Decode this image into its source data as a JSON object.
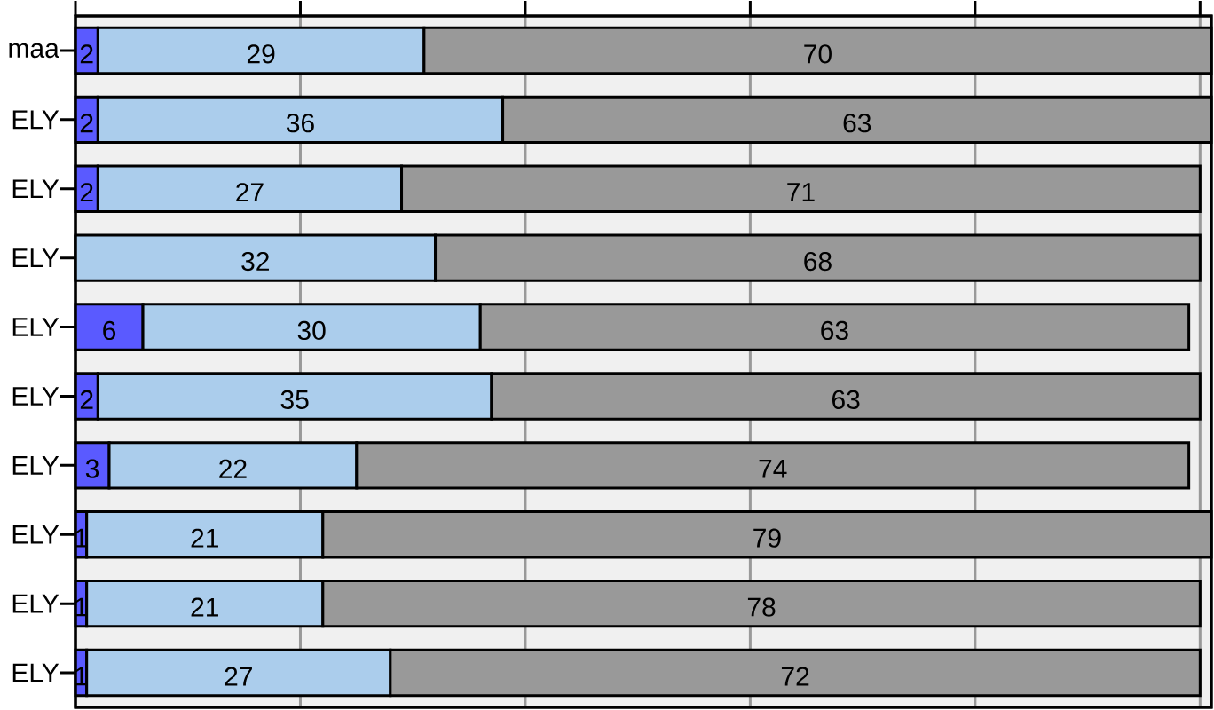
{
  "chart_data": {
    "type": "bar",
    "orientation": "horizontal",
    "stacked": true,
    "categories": [
      "maa",
      "ELY",
      "ELY",
      "ELY",
      "ELY",
      "ELY",
      "ELY",
      "ELY",
      "ELY",
      "ELY"
    ],
    "series": [
      {
        "color": "#5a5aff",
        "values": [
          2,
          2,
          2,
          0,
          6,
          2,
          3,
          1,
          1,
          1
        ],
        "value_labels": [
          "2",
          "2",
          "2",
          null,
          "6",
          "2",
          "3",
          "1",
          "1",
          "1"
        ]
      },
      {
        "color": "#abcdec",
        "values": [
          29,
          36,
          27,
          32,
          30,
          35,
          22,
          21,
          21,
          27
        ],
        "value_labels": [
          "29",
          "36",
          "27",
          "32",
          "30",
          "35",
          "22",
          "21",
          "21",
          "27"
        ]
      },
      {
        "color": "#999999",
        "values": [
          70,
          63,
          71,
          68,
          63,
          63,
          74,
          79,
          78,
          72
        ],
        "value_labels": [
          "70",
          "63",
          "71",
          "68",
          "63",
          "63",
          "74",
          "79",
          "78",
          "72"
        ]
      }
    ],
    "xlim": [
      0,
      101
    ],
    "xticks": [
      {
        "value": 0,
        "label": null
      },
      {
        "value": 20,
        "label": null
      },
      {
        "value": 40,
        "label": null
      },
      {
        "value": 60,
        "label": null
      },
      {
        "value": 80,
        "label": null
      },
      {
        "value": 100,
        "label": null
      }
    ],
    "grid": "x",
    "tick_labels": "y"
  }
}
